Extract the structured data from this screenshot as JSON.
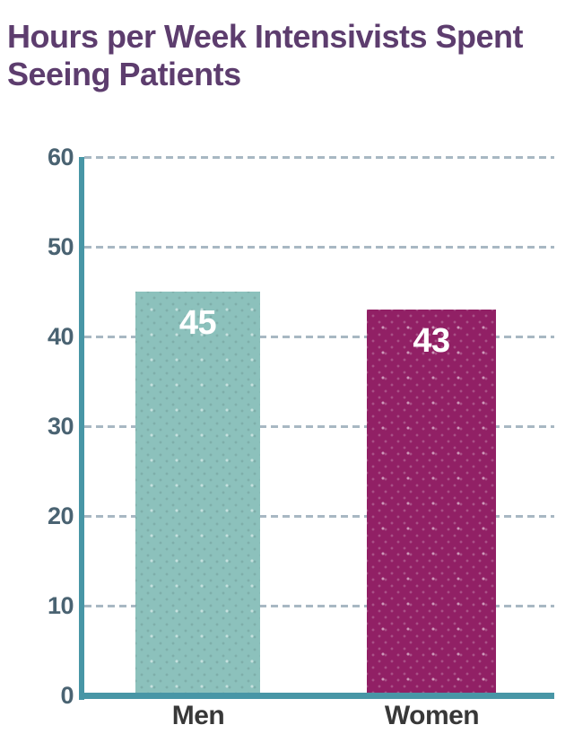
{
  "title": "Hours per Week Intensivists Spent\nSeeing Patients",
  "chart_data": {
    "type": "bar",
    "title": "Hours per Week Intensivists Spent Seeing Patients",
    "categories": [
      "Men",
      "Women"
    ],
    "values": [
      45,
      43
    ],
    "value_labels": [
      "45",
      "43"
    ],
    "xlabel": "",
    "ylabel": "",
    "ylim": [
      0,
      60
    ],
    "yticks": [
      0,
      10,
      20,
      30,
      40,
      50,
      60
    ],
    "grid": "horizontal dashed",
    "legend": false,
    "bar_texture": "diagonal dotted",
    "colors": {
      "title_text": "#5D3D6E",
      "bar_men": "#8CC1BC",
      "bar_women": "#912065",
      "axis_line": "#4896A6",
      "gridline": "#A8B8C3",
      "ytick_text": "#4A6372",
      "xtick_text": "#383838",
      "value_label_text": "#FFFFFF"
    }
  }
}
